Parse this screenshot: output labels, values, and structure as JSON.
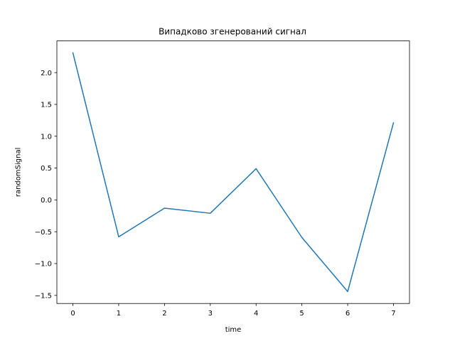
{
  "chart_data": {
    "type": "line",
    "title": "Випадково згенерований сигнал",
    "xlabel": "time",
    "ylabel": "randomSignal",
    "x": [
      0,
      1,
      2,
      3,
      4,
      5,
      6,
      7
    ],
    "series": [
      {
        "values": [
          2.31,
          -0.58,
          -0.13,
          -0.21,
          0.49,
          -0.59,
          -1.44,
          1.21
        ],
        "color": "#1f77b4"
      }
    ],
    "xticks": [
      0,
      1,
      2,
      3,
      4,
      5,
      6,
      7
    ],
    "xtick_labels": [
      "0",
      "1",
      "2",
      "3",
      "4",
      "5",
      "6",
      "7"
    ],
    "yticks": [
      -1.5,
      -1.0,
      -0.5,
      0.0,
      0.5,
      1.0,
      1.5,
      2.0
    ],
    "ytick_labels": [
      "−1.5",
      "−1.0",
      "−0.5",
      "0.0",
      "0.5",
      "1.0",
      "1.5",
      "2.0"
    ],
    "xlim": [
      -0.35,
      7.35
    ],
    "ylim": [
      -1.6275,
      2.4975
    ],
    "grid": false,
    "legend": false
  }
}
